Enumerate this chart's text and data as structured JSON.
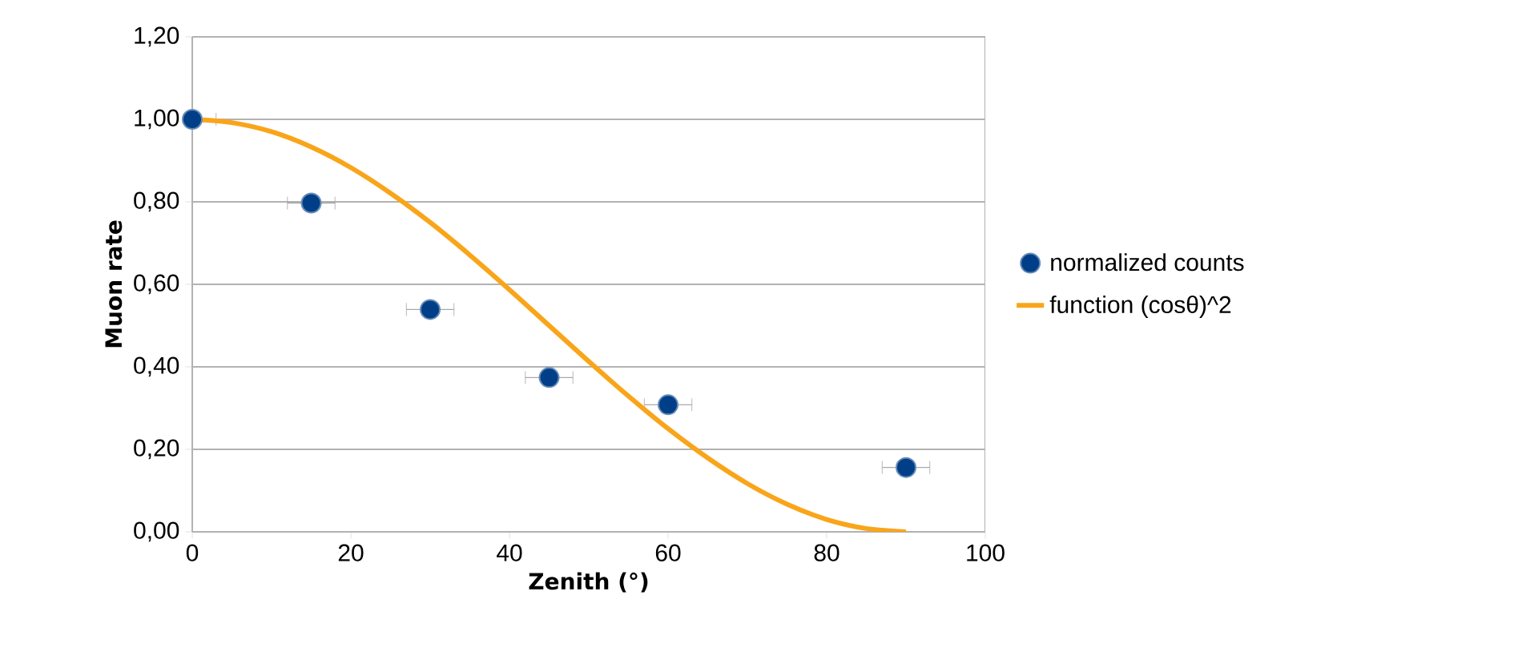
{
  "chart_data": {
    "type": "scatter",
    "xlabel": "Zenith (°)",
    "ylabel": "Muon rate",
    "xlim": [
      0,
      100
    ],
    "xticks": [
      0,
      20,
      40,
      60,
      80,
      100
    ],
    "ylim": [
      0,
      1.2
    ],
    "yticks": [
      {
        "value": 0,
        "label": "0,00"
      },
      {
        "value": 0.2,
        "label": "0,20"
      },
      {
        "value": 0.4,
        "label": "0,40"
      },
      {
        "value": 0.6,
        "label": "0,60"
      },
      {
        "value": 0.8,
        "label": "0,80"
      },
      {
        "value": 1.0,
        "label": "1,00"
      },
      {
        "value": 1.2,
        "label": "1,20"
      }
    ],
    "grid": "y",
    "legend": "right",
    "series": [
      {
        "name": "normalized counts",
        "marker": "circle",
        "color": "#003f87",
        "x": [
          0,
          15,
          30,
          45,
          60,
          90
        ],
        "values": [
          1.0,
          0.797,
          0.539,
          0.374,
          0.308,
          0.156
        ],
        "xerrors": [
          3,
          3,
          3,
          3,
          3,
          3
        ]
      },
      {
        "name": "function (cosθ)^2",
        "type": "line",
        "marker": "none",
        "color": "#f9a51a",
        "x": [
          0,
          5,
          10,
          15,
          20,
          25,
          30,
          35,
          40,
          45,
          50,
          55,
          60,
          65,
          70,
          75,
          80,
          85,
          90
        ],
        "values": [
          1.0,
          0.992,
          0.97,
          0.933,
          0.883,
          0.821,
          0.75,
          0.671,
          0.587,
          0.5,
          0.413,
          0.329,
          0.25,
          0.179,
          0.117,
          0.067,
          0.03,
          0.008,
          0.0
        ]
      }
    ]
  }
}
